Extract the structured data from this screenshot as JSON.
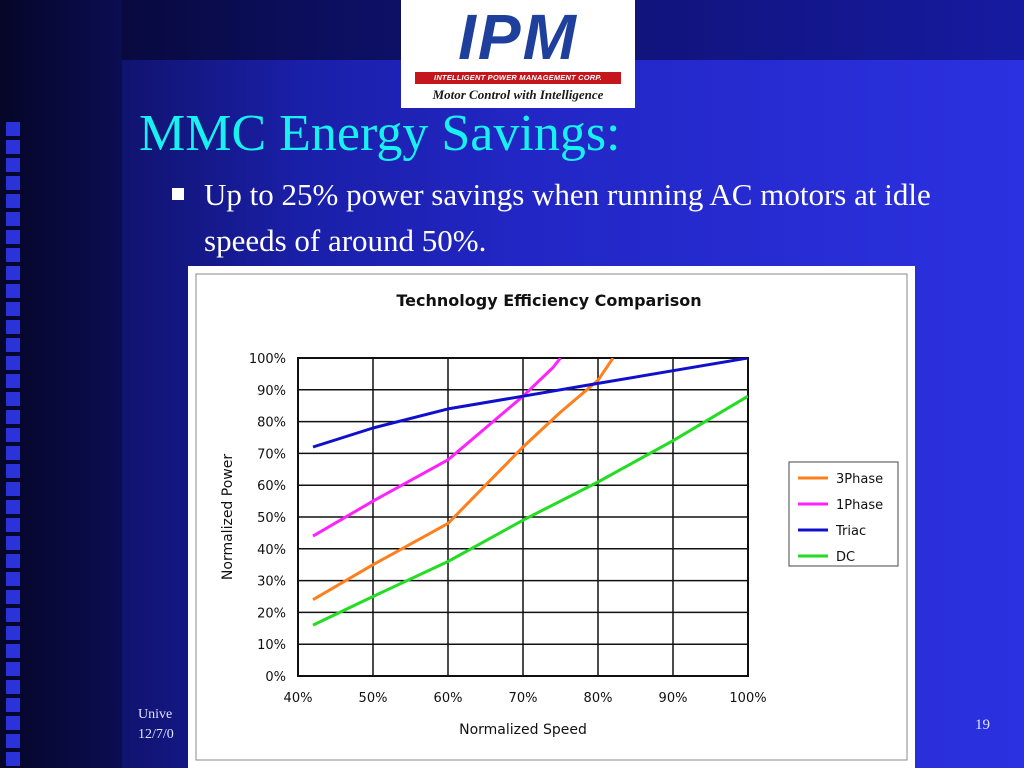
{
  "logo": {
    "wordmark": "IPM",
    "company": "INTELLIGENT POWER MANAGEMENT CORP.",
    "tagline": "Motor Control with Intelligence",
    "colors": {
      "mark": "#1e3f9c",
      "stripe": "#c4161c"
    }
  },
  "slide": {
    "title": "MMC Energy Savings:",
    "bullet": "Up to 25% power savings when running AC motors at idle speeds of around 50%.",
    "footer_left": "Unive\n12/7/0",
    "page_number": "19",
    "colors": {
      "title": "#19f0f0",
      "text": "#ffffff"
    }
  },
  "chart_data": {
    "type": "line",
    "title": "Technology Efficiency Comparison",
    "xlabel": "Normalized Speed",
    "ylabel": "Normalized Power",
    "xlim": [
      40,
      100
    ],
    "ylim": [
      0,
      100
    ],
    "xticks": [
      "40%",
      "50%",
      "60%",
      "70%",
      "80%",
      "90%",
      "100%"
    ],
    "yticks": [
      "0%",
      "10%",
      "20%",
      "30%",
      "40%",
      "50%",
      "60%",
      "70%",
      "80%",
      "90%",
      "100%"
    ],
    "grid": true,
    "legend_position": "right",
    "series": [
      {
        "name": "3Phase",
        "color": "#ff7f1e",
        "points": [
          [
            42,
            24
          ],
          [
            50,
            35
          ],
          [
            60,
            48
          ],
          [
            65,
            60
          ],
          [
            70,
            72
          ],
          [
            75,
            83
          ],
          [
            80,
            93
          ],
          [
            82,
            100
          ]
        ]
      },
      {
        "name": "1Phase",
        "color": "#ff22ff",
        "points": [
          [
            42,
            44
          ],
          [
            50,
            55
          ],
          [
            60,
            68
          ],
          [
            65,
            78
          ],
          [
            70,
            88
          ],
          [
            74,
            97
          ],
          [
            75,
            100
          ]
        ]
      },
      {
        "name": "Triac",
        "color": "#1010cc",
        "points": [
          [
            42,
            72
          ],
          [
            50,
            78
          ],
          [
            60,
            84
          ],
          [
            70,
            88
          ],
          [
            80,
            92
          ],
          [
            90,
            96
          ],
          [
            100,
            100
          ]
        ]
      },
      {
        "name": "DC",
        "color": "#22dd22",
        "points": [
          [
            42,
            16
          ],
          [
            50,
            25
          ],
          [
            60,
            36
          ],
          [
            70,
            49
          ],
          [
            80,
            61
          ],
          [
            90,
            74
          ],
          [
            100,
            88
          ]
        ]
      }
    ]
  }
}
